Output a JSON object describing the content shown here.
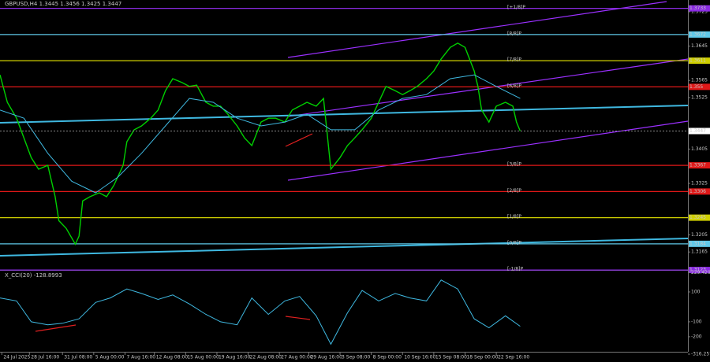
{
  "chart_data": [
    {
      "type": "line",
      "title": "GBPUSD,H4  1.3445 1.3456 1.3425 1.3447",
      "xlim": [
        0,
        374.25
      ],
      "ylim": [
        1.3125,
        1.37525
      ],
      "xticks": [
        {
          "value": 1,
          "label": "24 Jul 2025"
        },
        {
          "value": 16,
          "label": "28 Jul 16:00"
        },
        {
          "value": 34,
          "label": "31 Jul 08:00"
        },
        {
          "value": 51,
          "label": "5 Aug 00:00"
        },
        {
          "value": 68,
          "label": "7 Aug 16:00"
        },
        {
          "value": 84,
          "label": "12 Aug 08:00"
        },
        {
          "value": 101,
          "label": "15 Aug 00:00"
        },
        {
          "value": 118,
          "label": "19 Aug 16:00"
        },
        {
          "value": 135,
          "label": "22 Aug 08:00"
        },
        {
          "value": 152,
          "label": "27 Aug 00:00"
        },
        {
          "value": 168,
          "label": "29 Aug 16:00"
        },
        {
          "value": 185,
          "label": "3 Sep 08:00"
        },
        {
          "value": 202,
          "label": "8 Sep 00:00"
        },
        {
          "value": 219,
          "label": "10 Sep 16:00"
        },
        {
          "value": 236,
          "label": "15 Sep 08:00"
        },
        {
          "value": 253,
          "label": "18 Sep 00:00"
        },
        {
          "value": 270,
          "label": "22 Sep 16:00"
        }
      ],
      "yticks": [
        1.3725,
        1.3645,
        1.3565,
        1.3525,
        1.3405,
        1.3325,
        1.3205,
        1.3165
      ],
      "series": [
        {
          "name": "GBPUSD",
          "color": "#00d000",
          "x": [
            0,
            4,
            9,
            13,
            17,
            21,
            26,
            30,
            32,
            36,
            41,
            43,
            45,
            49,
            54,
            58,
            62,
            67,
            69,
            73,
            77,
            82,
            86,
            90,
            94,
            99,
            103,
            107,
            112,
            116,
            120,
            124,
            129,
            133,
            137,
            142,
            146,
            150,
            155,
            159,
            163,
            167,
            172,
            176,
            180,
            185,
            189,
            193,
            197,
            202,
            206,
            210,
            215,
            219,
            223,
            227,
            232,
            236,
            240,
            245,
            249,
            253,
            258,
            260,
            262,
            266,
            270,
            275,
            279,
            281,
            283
          ],
          "values": [
            1.3578,
            1.3514,
            1.3477,
            1.3431,
            1.3385,
            1.3358,
            1.3367,
            1.3294,
            1.3238,
            1.322,
            1.3183,
            1.3202,
            1.3284,
            1.3294,
            1.3303,
            1.3294,
            1.3321,
            1.3367,
            1.3422,
            1.345,
            1.3459,
            1.3477,
            1.3496,
            1.3541,
            1.3569,
            1.356,
            1.3551,
            1.3554,
            1.3514,
            1.3505,
            1.3505,
            1.3486,
            1.3459,
            1.3431,
            1.3413,
            1.3468,
            1.3477,
            1.3477,
            1.3468,
            1.3496,
            1.3505,
            1.3514,
            1.3505,
            1.3523,
            1.3358,
            1.3385,
            1.3413,
            1.3431,
            1.345,
            1.3477,
            1.3514,
            1.3551,
            1.3541,
            1.3532,
            1.3541,
            1.3551,
            1.3569,
            1.3587,
            1.3615,
            1.3642,
            1.3652,
            1.3642,
            1.3587,
            1.3551,
            1.3496,
            1.3468,
            1.3505,
            1.3514,
            1.3505,
            1.3468,
            1.3447
          ]
        },
        {
          "name": "MA",
          "color": "#3fb8e0",
          "x": [
            0,
            13,
            26,
            39,
            52,
            64,
            77,
            90,
            103,
            116,
            129,
            142,
            155,
            167,
            180,
            193,
            206,
            219,
            232,
            245,
            258,
            270,
            283
          ],
          "values": [
            1.3496,
            1.3477,
            1.3395,
            1.333,
            1.3303,
            1.3339,
            1.3395,
            1.3459,
            1.3523,
            1.3514,
            1.3477,
            1.3459,
            1.3468,
            1.3486,
            1.345,
            1.345,
            1.3496,
            1.3523,
            1.3532,
            1.3569,
            1.3578,
            1.3551,
            1.3523
          ]
        }
      ],
      "levels": [
        {
          "name": "[+1/8]P",
          "value": 1.3733,
          "color": "#8a2be2"
        },
        {
          "name": "[8/8]P",
          "value": 1.3672,
          "color": "#5fc8e8"
        },
        {
          "name": "[7/8]P",
          "value": 1.3611,
          "color": "#d0d000"
        },
        {
          "name": "[6/8]P",
          "value": 1.355,
          "color": "#e01818"
        },
        {
          "name": "[3/8]P",
          "value": 1.3367,
          "color": "#e01818"
        },
        {
          "name": "[2/8]P",
          "value": 1.3306,
          "color": "#e01818"
        },
        {
          "name": "[1/8]P",
          "value": 1.3245,
          "color": "#d0d000"
        },
        {
          "name": "[0/8]P",
          "value": 1.3184,
          "color": "#5fc8e8"
        },
        {
          "name": "[-1/8]P",
          "value": 1.3123,
          "color": "#8a2be2"
        }
      ],
      "last_price": 1.3447
    },
    {
      "type": "line",
      "title": "X_CCI(20) -128.8993",
      "xlim": [
        0,
        374.25
      ],
      "ylim": [
        -316.257,
        229.429
      ],
      "yticks": [
        229.429,
        100,
        -100,
        -200,
        -316.257
      ],
      "series": [
        {
          "name": "CCI",
          "color": "#3fb8e0",
          "x": [
            0,
            9,
            17,
            26,
            34,
            43,
            52,
            60,
            69,
            77,
            86,
            94,
            103,
            112,
            120,
            129,
            137,
            146,
            155,
            163,
            172,
            180,
            189,
            197,
            206,
            215,
            223,
            232,
            240,
            249,
            258,
            266,
            275,
            283
          ],
          "values": [
            60,
            40,
            -100,
            -120,
            -110,
            -80,
            30,
            60,
            120,
            90,
            50,
            80,
            20,
            -50,
            -100,
            -120,
            60,
            -50,
            40,
            70,
            -60,
            -250,
            -40,
            110,
            40,
            90,
            60,
            40,
            180,
            120,
            -80,
            -140,
            -60,
            -130
          ]
        }
      ]
    }
  ]
}
